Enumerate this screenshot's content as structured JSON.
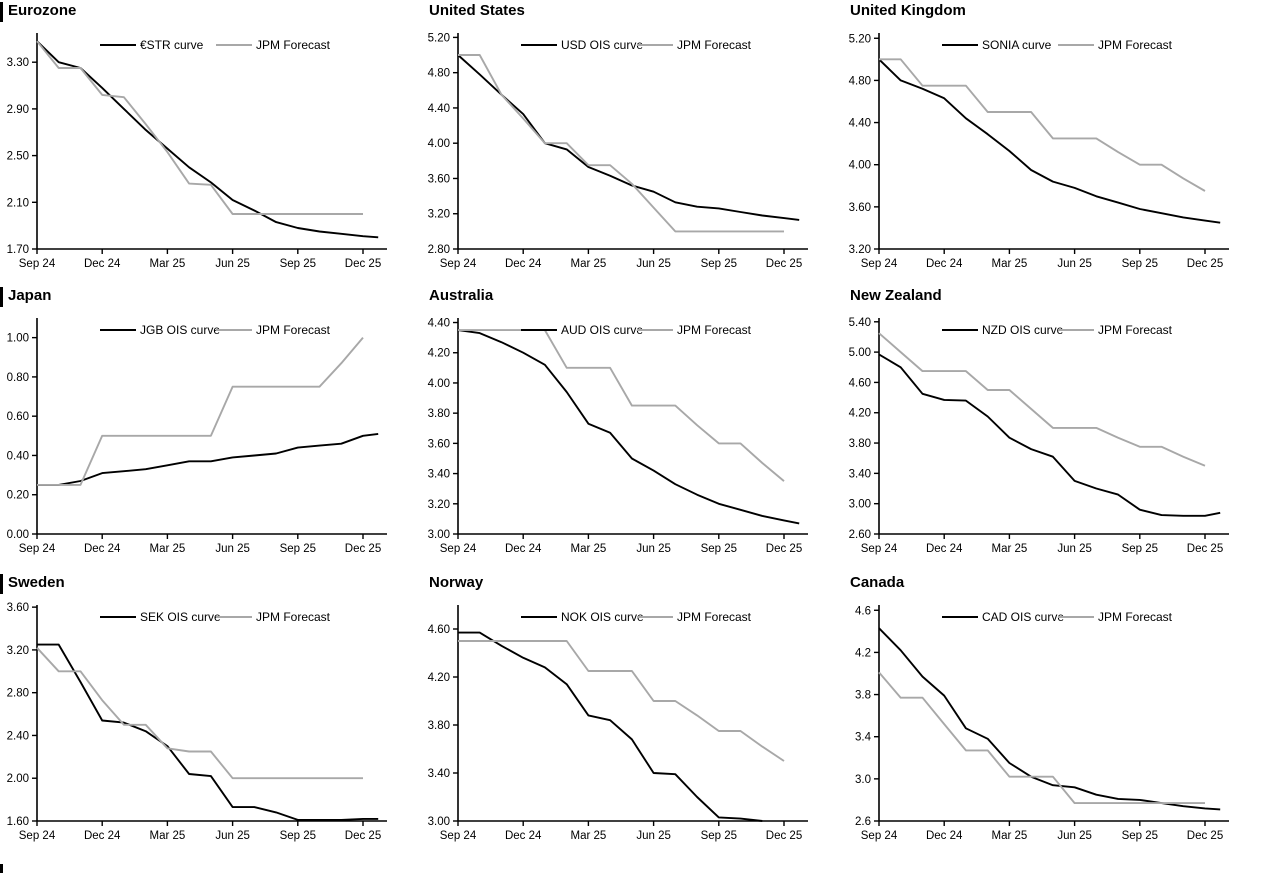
{
  "page": {
    "background": "#ffffff",
    "curve_color": "#000000",
    "forecast_color": "#a8a8a8"
  },
  "chart_data": [
    {
      "type": "line",
      "title": "Eurozone",
      "has_left_bar": true,
      "x_tick_labels": [
        "Sep 24",
        "Dec 24",
        "Mar 25",
        "Jun 25",
        "Sep 25",
        "Dec 25"
      ],
      "ylim": [
        1.7,
        3.55
      ],
      "yticks": [
        "1.70",
        "2.10",
        "2.50",
        "2.90",
        "3.30"
      ],
      "legend_position": "top",
      "grid": false,
      "series": [
        {
          "name": "€STR curve",
          "color": "#000000",
          "values": [
            3.48,
            3.3,
            3.25,
            3.08,
            2.9,
            2.72,
            2.56,
            2.4,
            2.27,
            2.12,
            2.03,
            1.93,
            1.88,
            1.85,
            1.83,
            1.81
          ],
          "ext": 1.8
        },
        {
          "name": "JPM Forecast",
          "color": "#a8a8a8",
          "values": [
            3.48,
            3.25,
            3.25,
            3.02,
            3.0,
            2.77,
            2.53,
            2.26,
            2.25,
            2.0,
            2.0,
            2.0,
            2.0,
            2.0,
            2.0,
            2.0
          ],
          "ext": null
        }
      ]
    },
    {
      "type": "line",
      "title": "United States",
      "has_left_bar": false,
      "x_tick_labels": [
        "Sep 24",
        "Dec 24",
        "Mar 25",
        "Jun 25",
        "Sep 25",
        "Dec 25"
      ],
      "ylim": [
        2.8,
        5.25
      ],
      "yticks": [
        "2.80",
        "3.20",
        "3.60",
        "4.00",
        "4.40",
        "4.80",
        "5.20"
      ],
      "legend_position": "top",
      "grid": false,
      "series": [
        {
          "name": "USD OIS curve",
          "color": "#000000",
          "values": [
            5.0,
            4.78,
            4.55,
            4.33,
            4.0,
            3.93,
            3.73,
            3.63,
            3.52,
            3.45,
            3.33,
            3.28,
            3.26,
            3.22,
            3.18,
            3.15
          ],
          "ext": 3.13
        },
        {
          "name": "JPM Forecast",
          "color": "#a8a8a8",
          "values": [
            5.0,
            5.0,
            4.55,
            4.28,
            4.0,
            4.0,
            3.75,
            3.75,
            3.54,
            3.27,
            3.0,
            3.0,
            3.0,
            3.0,
            3.0,
            3.0
          ],
          "ext": null
        }
      ]
    },
    {
      "type": "line",
      "title": "United Kingdom",
      "has_left_bar": false,
      "x_tick_labels": [
        "Sep 24",
        "Dec 24",
        "Mar 25",
        "Jun 25",
        "Sep 25",
        "Dec 25"
      ],
      "ylim": [
        3.2,
        5.25
      ],
      "yticks": [
        "3.20",
        "3.60",
        "4.00",
        "4.40",
        "4.80",
        "5.20"
      ],
      "legend_position": "top",
      "grid": false,
      "series": [
        {
          "name": "SONIA curve",
          "color": "#000000",
          "values": [
            5.0,
            4.8,
            4.72,
            4.63,
            4.44,
            4.29,
            4.13,
            3.95,
            3.84,
            3.78,
            3.7,
            3.64,
            3.58,
            3.54,
            3.5,
            3.47
          ],
          "ext": 3.45
        },
        {
          "name": "JPM Forecast",
          "color": "#a8a8a8",
          "values": [
            5.0,
            5.0,
            4.75,
            4.75,
            4.75,
            4.5,
            4.5,
            4.5,
            4.25,
            4.25,
            4.25,
            4.12,
            4.0,
            4.0,
            3.87,
            3.75
          ],
          "ext": null
        }
      ]
    },
    {
      "type": "line",
      "title": "Japan",
      "has_left_bar": true,
      "x_tick_labels": [
        "Sep 24",
        "Dec 24",
        "Mar 25",
        "Jun 25",
        "Sep 25",
        "Dec 25"
      ],
      "ylim": [
        0.0,
        1.1
      ],
      "yticks": [
        "0.00",
        "0.20",
        "0.40",
        "0.60",
        "0.80",
        "1.00"
      ],
      "legend_position": "top",
      "grid": false,
      "series": [
        {
          "name": "JGB OIS curve",
          "color": "#000000",
          "values": [
            0.25,
            0.25,
            0.27,
            0.31,
            0.32,
            0.33,
            0.35,
            0.37,
            0.37,
            0.39,
            0.4,
            0.41,
            0.44,
            0.45,
            0.46,
            0.5
          ],
          "ext": 0.51
        },
        {
          "name": "JPM Forecast",
          "color": "#a8a8a8",
          "values": [
            0.25,
            0.25,
            0.25,
            0.5,
            0.5,
            0.5,
            0.5,
            0.5,
            0.5,
            0.75,
            0.75,
            0.75,
            0.75,
            0.75,
            0.87,
            1.0
          ],
          "ext": null
        }
      ]
    },
    {
      "type": "line",
      "title": "Australia",
      "has_left_bar": false,
      "x_tick_labels": [
        "Sep 24",
        "Dec 24",
        "Mar 25",
        "Jun 25",
        "Sep 25",
        "Dec 25"
      ],
      "ylim": [
        3.0,
        4.43
      ],
      "yticks": [
        "3.00",
        "3.20",
        "3.40",
        "3.60",
        "3.80",
        "4.00",
        "4.20",
        "4.40"
      ],
      "legend_position": "top",
      "grid": false,
      "series": [
        {
          "name": "AUD OIS curve",
          "color": "#000000",
          "values": [
            4.35,
            4.33,
            4.27,
            4.2,
            4.12,
            3.94,
            3.73,
            3.67,
            3.5,
            3.42,
            3.33,
            3.26,
            3.2,
            3.16,
            3.12,
            3.09
          ],
          "ext": 3.07
        },
        {
          "name": "JPM Forecast",
          "color": "#a8a8a8",
          "values": [
            4.35,
            4.35,
            4.35,
            4.35,
            4.35,
            4.1,
            4.1,
            4.1,
            3.85,
            3.85,
            3.85,
            3.72,
            3.6,
            3.6,
            3.47,
            3.35
          ],
          "ext": null
        }
      ]
    },
    {
      "type": "line",
      "title": "New Zealand",
      "has_left_bar": false,
      "x_tick_labels": [
        "Sep 24",
        "Dec 24",
        "Mar 25",
        "Jun 25",
        "Sep 25",
        "Dec 25"
      ],
      "ylim": [
        2.6,
        5.45
      ],
      "yticks": [
        "2.60",
        "3.00",
        "3.40",
        "3.80",
        "4.20",
        "4.60",
        "5.00",
        "5.40"
      ],
      "legend_position": "top",
      "grid": false,
      "series": [
        {
          "name": "NZD OIS curve",
          "color": "#000000",
          "values": [
            4.97,
            4.8,
            4.45,
            4.37,
            4.36,
            4.15,
            3.87,
            3.72,
            3.62,
            3.3,
            3.2,
            3.12,
            2.92,
            2.85,
            2.84,
            2.84
          ],
          "ext": 2.88
        },
        {
          "name": "JPM Forecast",
          "color": "#a8a8a8",
          "values": [
            5.25,
            5.0,
            4.75,
            4.75,
            4.75,
            4.5,
            4.5,
            4.25,
            4.0,
            4.0,
            4.0,
            3.87,
            3.75,
            3.75,
            3.62,
            3.5
          ],
          "ext": null
        }
      ]
    },
    {
      "type": "line",
      "title": "Sweden",
      "has_left_bar": true,
      "x_tick_labels": [
        "Sep 24",
        "Dec 24",
        "Mar 25",
        "Jun 25",
        "Sep 25",
        "Dec 25"
      ],
      "ylim": [
        1.6,
        3.62
      ],
      "yticks": [
        "1.60",
        "2.00",
        "2.40",
        "2.80",
        "3.20",
        "3.60"
      ],
      "legend_position": "top",
      "grid": false,
      "series": [
        {
          "name": "SEK OIS curve",
          "color": "#000000",
          "values": [
            3.25,
            3.25,
            2.9,
            2.54,
            2.52,
            2.44,
            2.3,
            2.04,
            2.02,
            1.73,
            1.73,
            1.68,
            1.61,
            1.61,
            1.61,
            1.62
          ],
          "ext": 1.62
        },
        {
          "name": "JPM Forecast",
          "color": "#a8a8a8",
          "values": [
            3.22,
            3.0,
            3.0,
            2.73,
            2.5,
            2.5,
            2.28,
            2.25,
            2.25,
            2.0,
            2.0,
            2.0,
            2.0,
            2.0,
            2.0,
            2.0
          ],
          "ext": null
        }
      ]
    },
    {
      "type": "line",
      "title": "Norway",
      "has_left_bar": false,
      "x_tick_labels": [
        "Sep 24",
        "Dec 24",
        "Mar 25",
        "Jun 25",
        "Sep 25",
        "Dec 25"
      ],
      "ylim": [
        3.0,
        4.8
      ],
      "yticks": [
        "3.00",
        "3.40",
        "3.80",
        "4.20",
        "4.60"
      ],
      "legend_position": "top",
      "grid": false,
      "series": [
        {
          "name": "NOK OIS curve",
          "color": "#000000",
          "values": [
            4.57,
            4.57,
            4.46,
            4.36,
            4.28,
            4.14,
            3.88,
            3.84,
            3.68,
            3.4,
            3.39,
            3.2,
            3.03,
            3.02,
            3.0,
            null
          ],
          "ext": null
        },
        {
          "name": "JPM Forecast",
          "color": "#a8a8a8",
          "values": [
            4.5,
            4.5,
            4.5,
            4.5,
            4.5,
            4.5,
            4.25,
            4.25,
            4.25,
            4.0,
            4.0,
            3.88,
            3.75,
            3.75,
            3.62,
            3.5
          ],
          "ext": null
        }
      ]
    },
    {
      "type": "line",
      "title": "Canada",
      "has_left_bar": false,
      "x_tick_labels": [
        "Sep 24",
        "Dec 24",
        "Mar 25",
        "Jun 25",
        "Sep 25",
        "Dec 25"
      ],
      "ylim": [
        2.6,
        4.65
      ],
      "yticks": [
        "2.6",
        "3.0",
        "3.4",
        "3.8",
        "4.2",
        "4.6"
      ],
      "legend_position": "top",
      "grid": false,
      "series": [
        {
          "name": "CAD OIS curve",
          "color": "#000000",
          "values": [
            4.43,
            4.22,
            3.97,
            3.79,
            3.48,
            3.38,
            3.15,
            3.02,
            2.94,
            2.92,
            2.85,
            2.81,
            2.8,
            2.77,
            2.74,
            2.72
          ],
          "ext": 2.71
        },
        {
          "name": "JPM Forecast",
          "color": "#a8a8a8",
          "values": [
            4.01,
            3.77,
            3.77,
            3.52,
            3.27,
            3.27,
            3.02,
            3.02,
            3.02,
            2.77,
            2.77,
            2.77,
            2.77,
            2.77,
            2.77,
            2.77
          ],
          "ext": null
        }
      ]
    }
  ]
}
